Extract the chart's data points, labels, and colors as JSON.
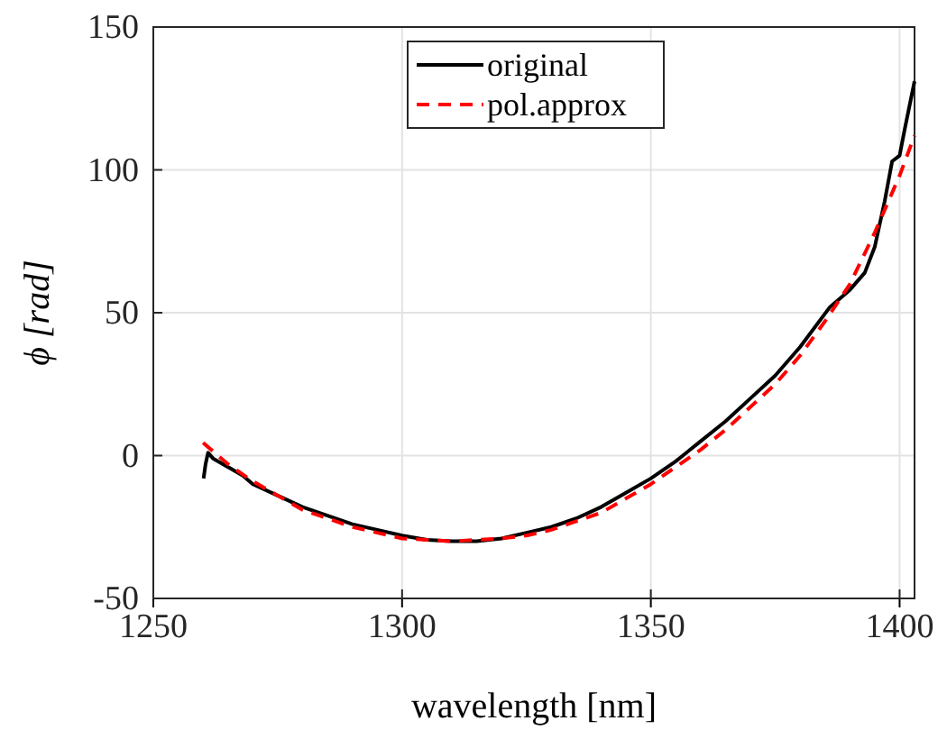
{
  "chart_data": {
    "type": "line",
    "xlabel": "wavelength [nm]",
    "ylabel": "ϕ  [rad]",
    "xlim": [
      1250,
      1403
    ],
    "ylim": [
      -50,
      150
    ],
    "xticks": [
      1250,
      1300,
      1350,
      1400
    ],
    "yticks": [
      -50,
      0,
      50,
      100,
      150
    ],
    "grid": true,
    "legend": "top",
    "series": [
      {
        "name": "original",
        "color": "#000000",
        "line_style": "solid",
        "x": [
          1260.1,
          1260.5,
          1261,
          1262,
          1265,
          1268,
          1270,
          1275,
          1280,
          1285,
          1290,
          1295,
          1300,
          1305,
          1310,
          1315,
          1320,
          1325,
          1330,
          1335,
          1340,
          1345,
          1350,
          1355,
          1360,
          1365,
          1370,
          1375,
          1380,
          1386,
          1390,
          1393,
          1395,
          1397,
          1398.5,
          1400,
          1401,
          1403
        ],
        "values": [
          -8,
          -3,
          1,
          -1,
          -4,
          -7,
          -10,
          -14,
          -18,
          -21,
          -24,
          -26,
          -28,
          -29.5,
          -30,
          -30,
          -29,
          -27,
          -25,
          -22,
          -18,
          -13,
          -8,
          -2,
          5,
          12,
          20,
          28,
          38,
          52,
          58,
          64,
          73,
          89,
          103,
          105,
          114,
          131
        ]
      },
      {
        "name": "pol.approx",
        "color": "#ff0000",
        "line_style": "dashed",
        "x": [
          1260,
          1265,
          1270,
          1275,
          1280,
          1285,
          1290,
          1295,
          1300,
          1305,
          1310,
          1315,
          1320,
          1325,
          1330,
          1335,
          1340,
          1345,
          1350,
          1355,
          1360,
          1365,
          1370,
          1375,
          1380,
          1385,
          1390,
          1395,
          1400,
          1403
        ],
        "values": [
          4.5,
          -3,
          -9,
          -14,
          -19,
          -22,
          -25,
          -27,
          -29,
          -29.5,
          -30,
          -29.5,
          -29,
          -28,
          -26,
          -23,
          -20,
          -15,
          -10,
          -4,
          2,
          9,
          17,
          25,
          35,
          47,
          60,
          78,
          98,
          112
        ]
      }
    ]
  }
}
